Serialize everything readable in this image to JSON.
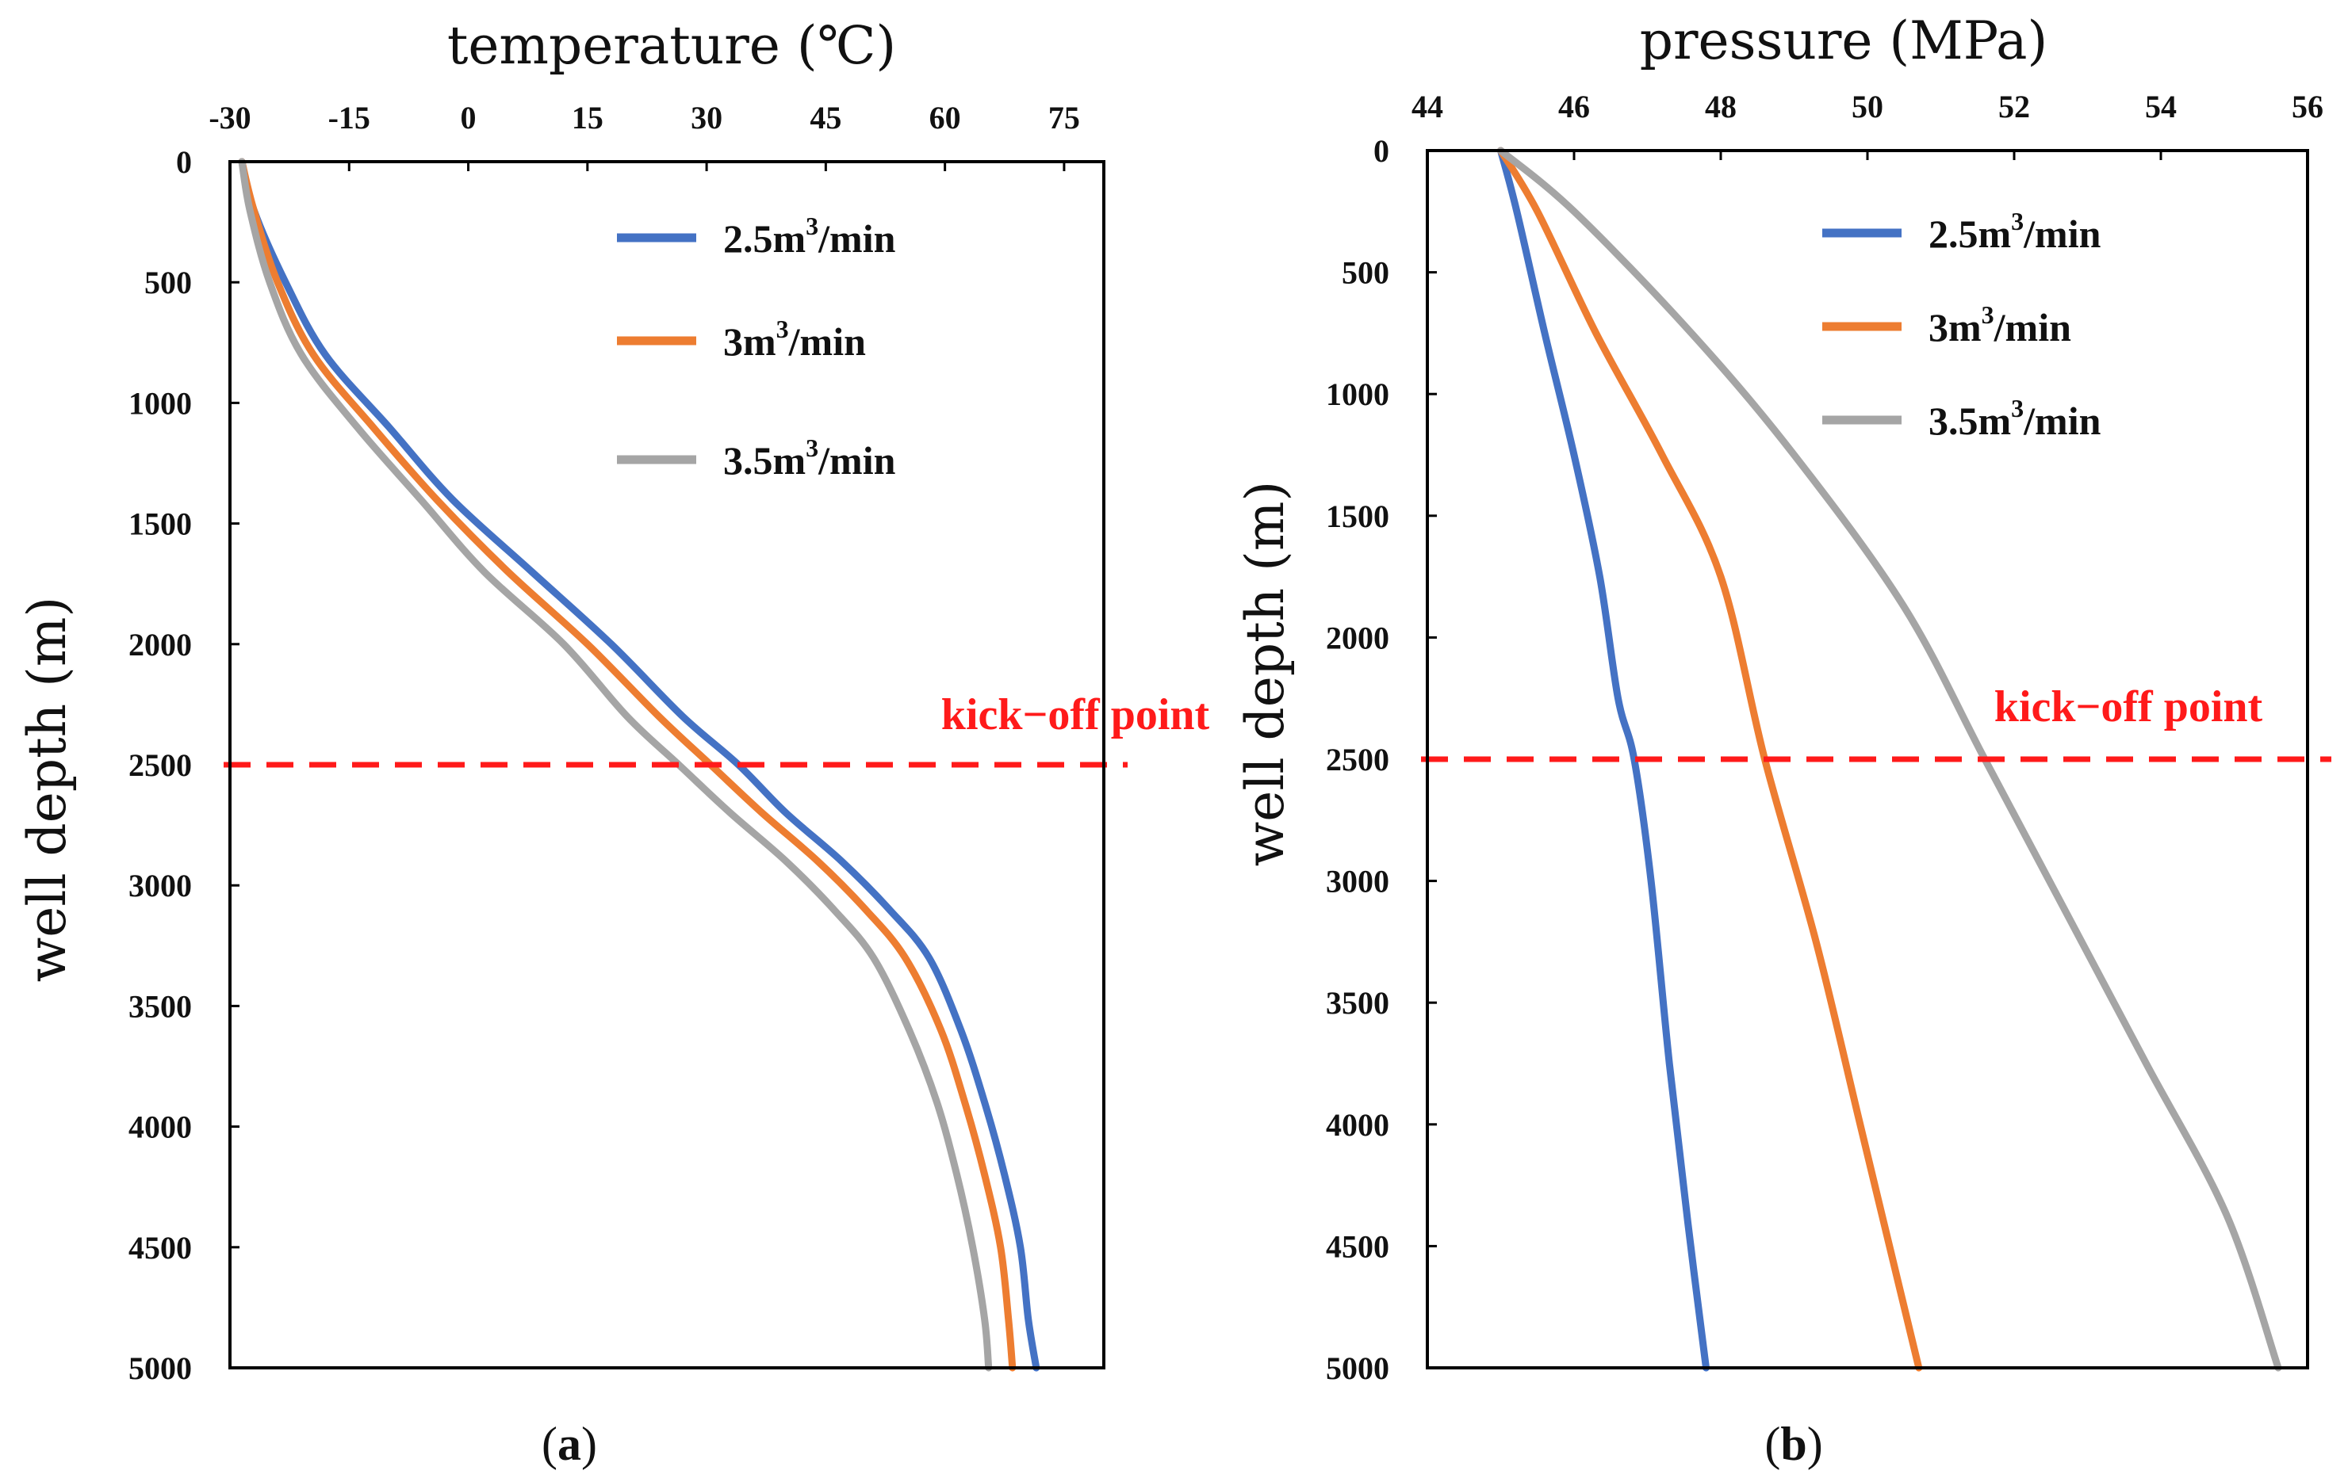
{
  "colors": {
    "series": [
      "#4472c4",
      "#ed7d31",
      "#a5a5a5"
    ],
    "kickoff": "#ff1a1a",
    "axis": "#000000"
  },
  "chart_data": [
    {
      "id": "a",
      "type": "line",
      "panel_label": "a",
      "title": "temperature (℃)",
      "xlabel": "temperature (℃)",
      "ylabel": "well depth (m)",
      "xlim": [
        -30,
        80
      ],
      "ylim": [
        0,
        5000
      ],
      "y_inverted": true,
      "xticks": [
        -30,
        -15,
        0,
        15,
        30,
        45,
        60,
        75
      ],
      "yticks": [
        0,
        500,
        1000,
        1500,
        2000,
        2500,
        3000,
        3500,
        4000,
        4500,
        5000
      ],
      "legend_position": "top-right",
      "kickoff_depth": 2500,
      "kickoff_label": "kick−off point",
      "series": [
        {
          "name": "2.5m³/min",
          "label_main": "2.5m",
          "label_sup": "3",
          "label_tail": "/min",
          "x": [
            -28.5,
            -27,
            -23,
            -18,
            -10,
            -2,
            8,
            18,
            27,
            34,
            40,
            47,
            53,
            58,
            62,
            65,
            67.5,
            69.5,
            70.5,
            71.5
          ],
          "y": [
            0,
            200,
            500,
            800,
            1100,
            1400,
            1700,
            2000,
            2300,
            2500,
            2700,
            2900,
            3100,
            3300,
            3600,
            3900,
            4200,
            4500,
            4800,
            5000
          ]
        },
        {
          "name": "3m³/min",
          "label_main": "3m",
          "label_sup": "3",
          "label_tail": "/min",
          "x": [
            -28.5,
            -27,
            -24,
            -19.5,
            -12,
            -4,
            5,
            15,
            24,
            30.5,
            37,
            44,
            50,
            55,
            59.5,
            62.5,
            65,
            67,
            68,
            68.5
          ],
          "y": [
            0,
            200,
            500,
            800,
            1100,
            1400,
            1700,
            2000,
            2300,
            2500,
            2700,
            2900,
            3100,
            3300,
            3600,
            3900,
            4200,
            4500,
            4800,
            5000
          ]
        },
        {
          "name": "3.5m³/min",
          "label_main": "3.5m",
          "label_sup": "3",
          "label_tail": "/min",
          "x": [
            -28.5,
            -27.5,
            -25,
            -21,
            -14,
            -6,
            2,
            12,
            20,
            26.5,
            33,
            40,
            46,
            51,
            55.5,
            59,
            61.5,
            63.5,
            65,
            65.5
          ],
          "y": [
            0,
            200,
            500,
            800,
            1100,
            1400,
            1700,
            2000,
            2300,
            2500,
            2700,
            2900,
            3100,
            3300,
            3600,
            3900,
            4200,
            4500,
            4800,
            5000
          ]
        }
      ]
    },
    {
      "id": "b",
      "type": "line",
      "panel_label": "b",
      "title": "pressure (MPa)",
      "xlabel": "pressure (MPa)",
      "ylabel": "well depth (m)",
      "xlim": [
        44,
        56
      ],
      "ylim": [
        0,
        5000
      ],
      "y_inverted": true,
      "xticks": [
        44,
        46,
        48,
        50,
        52,
        54,
        56
      ],
      "yticks": [
        0,
        500,
        1000,
        1500,
        2000,
        2500,
        3000,
        3500,
        4000,
        4500,
        5000
      ],
      "legend_position": "top-right",
      "kickoff_depth": 2500,
      "kickoff_label": "kick−off point",
      "series": [
        {
          "name": "2.5m³/min",
          "label_main": "2.5m",
          "label_sup": "3",
          "label_tail": "/min",
          "x": [
            45.0,
            45.22,
            45.6,
            46.0,
            46.35,
            46.6,
            46.82,
            47.05,
            47.3,
            47.55,
            47.8
          ],
          "y": [
            0,
            250,
            750,
            1250,
            1750,
            2250,
            2500,
            3000,
            3750,
            4400,
            5000
          ]
        },
        {
          "name": "3m³/min",
          "label_main": "3m",
          "label_sup": "3",
          "label_tail": "/min",
          "x": [
            45.0,
            45.5,
            46.3,
            47.2,
            48.0,
            48.6,
            49.3,
            49.9,
            50.3,
            50.7
          ],
          "y": [
            0,
            250,
            750,
            1250,
            1750,
            2500,
            3250,
            4000,
            4500,
            5000
          ]
        },
        {
          "name": "3.5m³/min",
          "label_main": "3.5m",
          "label_sup": "3",
          "label_tail": "/min",
          "x": [
            45.0,
            46.0,
            47.6,
            49.0,
            50.5,
            51.6,
            52.7,
            53.8,
            54.9,
            55.6
          ],
          "y": [
            0,
            250,
            750,
            1250,
            1875,
            2500,
            3125,
            3750,
            4375,
            5000
          ]
        }
      ]
    }
  ]
}
